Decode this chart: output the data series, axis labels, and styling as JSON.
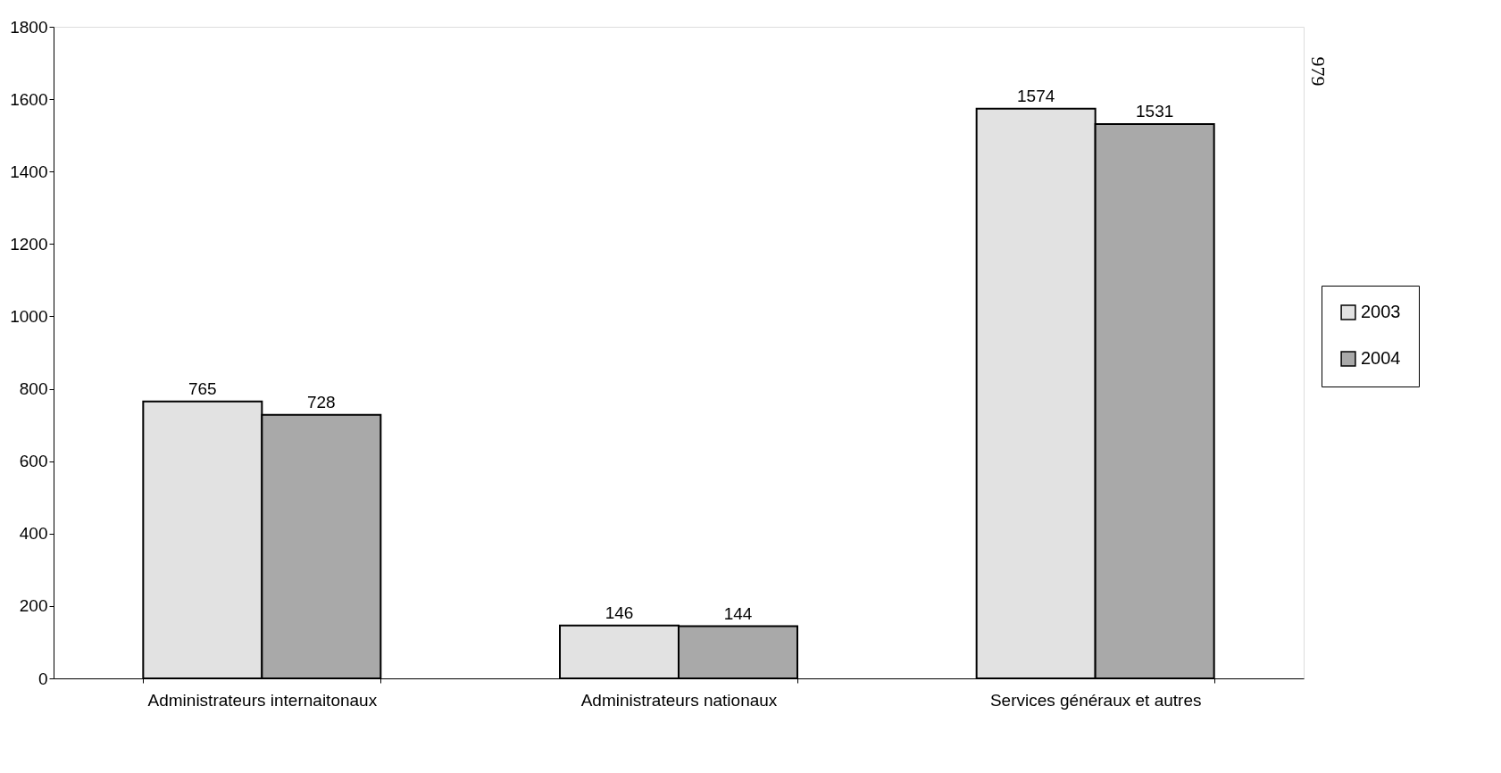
{
  "chart_data": {
    "type": "bar",
    "categories": [
      "Administrateurs internaitonaux",
      "Administrateurs nationaux",
      "Services généraux et autres"
    ],
    "series": [
      {
        "name": "2003",
        "color": "#e2e2e2",
        "values": [
          765,
          146,
          1574
        ]
      },
      {
        "name": "2004",
        "color": "#a9a9a9",
        "values": [
          728,
          144,
          1531
        ]
      }
    ],
    "ylim": [
      0,
      1800
    ],
    "yticks": [
      0,
      200,
      400,
      600,
      800,
      1000,
      1200,
      1400,
      1600,
      1800
    ],
    "data_labels": true,
    "legend": "right",
    "grid": false,
    "annotations": [
      "979"
    ]
  }
}
